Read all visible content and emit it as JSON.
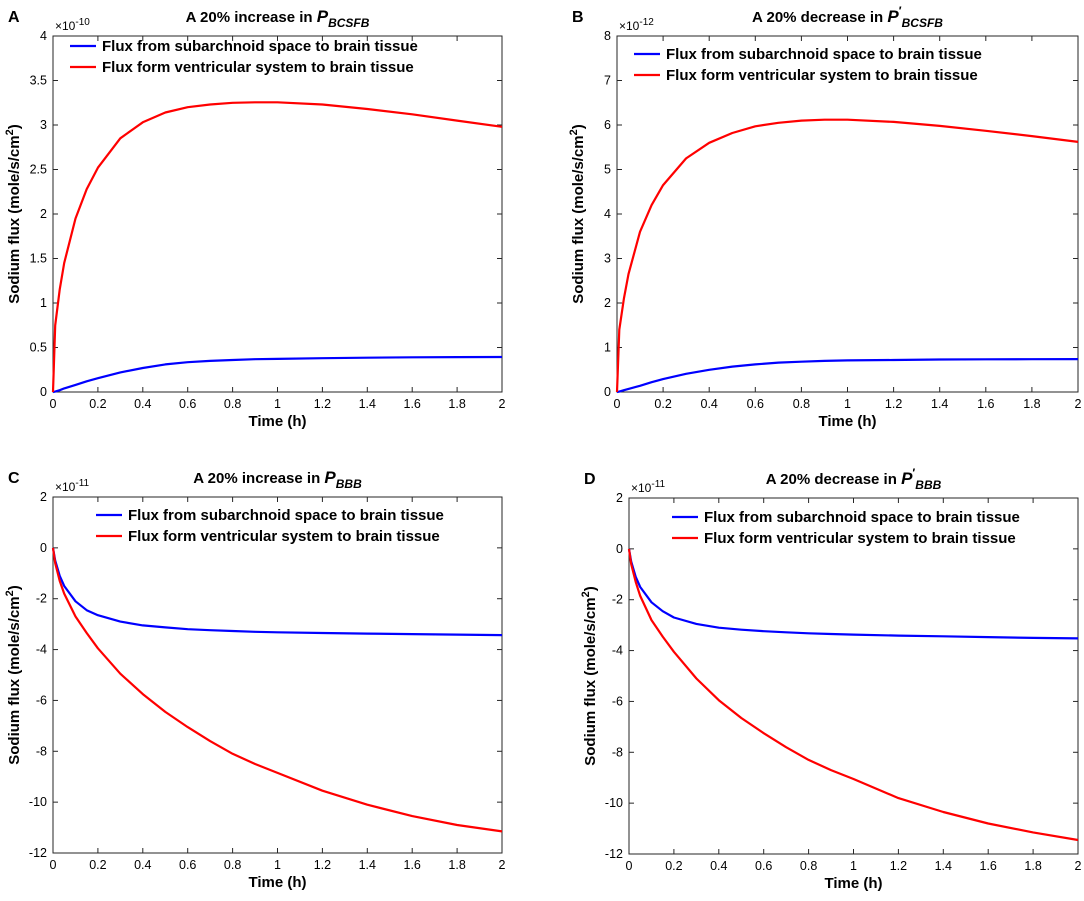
{
  "chart_data": [
    {
      "type": "line",
      "panel_label": "A",
      "title_prefix": "A 20% increase in ",
      "title_symbol": "P",
      "title_prime": "",
      "title_subscript": "BCSFB",
      "xlabel": "Time (h)",
      "ylabel_main": "Sodium flux (mole/s/cm",
      "ylabel_sup": "2",
      "ylabel_end": ")",
      "exponent_base": "×10",
      "exponent_power": "-10",
      "xlim": [
        0,
        2
      ],
      "ylim": [
        0,
        4
      ],
      "xticks": [
        0,
        0.2,
        0.4,
        0.6,
        0.8,
        1,
        1.2,
        1.4,
        1.6,
        1.8,
        2
      ],
      "xtick_labels": [
        "0",
        "0.2",
        "0.4",
        "0.6",
        "0.8",
        "1",
        "1.2",
        "1.4",
        "1.6",
        "1.8",
        "2"
      ],
      "yticks": [
        0,
        0.5,
        1,
        1.5,
        2,
        2.5,
        3,
        3.5,
        4
      ],
      "ytick_labels": [
        "0",
        "0.5",
        "1",
        "1.5",
        "2",
        "2.5",
        "3",
        "3.5",
        "4"
      ],
      "legend_position": "top-left",
      "x": [
        0,
        0.01,
        0.03,
        0.05,
        0.1,
        0.15,
        0.2,
        0.3,
        0.4,
        0.5,
        0.6,
        0.7,
        0.8,
        0.9,
        1.0,
        1.2,
        1.4,
        1.6,
        1.8,
        2.0
      ],
      "series": [
        {
          "name": "Flux from subarchnoid space to brain tissue",
          "color": "#0000ff",
          "values": [
            0,
            0.005,
            0.02,
            0.04,
            0.08,
            0.12,
            0.155,
            0.22,
            0.27,
            0.31,
            0.335,
            0.35,
            0.36,
            0.368,
            0.372,
            0.38,
            0.385,
            0.39,
            0.392,
            0.393
          ]
        },
        {
          "name": "Flux form ventricular system to brain tissue",
          "color": "#ff0000",
          "values": [
            0,
            0.75,
            1.15,
            1.45,
            1.95,
            2.28,
            2.52,
            2.85,
            3.03,
            3.14,
            3.2,
            3.23,
            3.25,
            3.255,
            3.255,
            3.23,
            3.18,
            3.12,
            3.05,
            2.98
          ]
        }
      ]
    },
    {
      "type": "line",
      "panel_label": "B",
      "title_prefix": "A 20% decrease in ",
      "title_symbol": "P",
      "title_prime": "′",
      "title_subscript": "BCSFB",
      "xlabel": "Time (h)",
      "ylabel_main": "Sodium flux (mole/s/cm",
      "ylabel_sup": "2",
      "ylabel_end": ")",
      "exponent_base": "×10",
      "exponent_power": "-12",
      "xlim": [
        0,
        2
      ],
      "ylim": [
        0,
        8
      ],
      "xticks": [
        0,
        0.2,
        0.4,
        0.6,
        0.8,
        1,
        1.2,
        1.4,
        1.6,
        1.8,
        2
      ],
      "xtick_labels": [
        "0",
        "0.2",
        "0.4",
        "0.6",
        "0.8",
        "1",
        "1.2",
        "1.4",
        "1.6",
        "1.8",
        "2"
      ],
      "yticks": [
        0,
        1,
        2,
        3,
        4,
        5,
        6,
        7,
        8
      ],
      "ytick_labels": [
        "0",
        "1",
        "2",
        "3",
        "4",
        "5",
        "6",
        "7",
        "8"
      ],
      "legend_position": "top-right",
      "x": [
        0,
        0.01,
        0.03,
        0.05,
        0.1,
        0.15,
        0.2,
        0.3,
        0.4,
        0.5,
        0.6,
        0.7,
        0.8,
        0.9,
        1.0,
        1.2,
        1.4,
        1.6,
        1.8,
        2.0
      ],
      "series": [
        {
          "name": "Flux from subarchnoid space to brain tissue",
          "color": "#0000ff",
          "values": [
            0,
            0.01,
            0.04,
            0.07,
            0.14,
            0.22,
            0.29,
            0.41,
            0.5,
            0.57,
            0.62,
            0.66,
            0.68,
            0.7,
            0.71,
            0.72,
            0.73,
            0.735,
            0.738,
            0.74
          ]
        },
        {
          "name": "Flux form ventricular system to brain tissue",
          "color": "#ff0000",
          "values": [
            0,
            1.4,
            2.1,
            2.65,
            3.6,
            4.2,
            4.65,
            5.25,
            5.6,
            5.82,
            5.97,
            6.05,
            6.1,
            6.12,
            6.12,
            6.07,
            5.98,
            5.87,
            5.75,
            5.62
          ]
        }
      ]
    },
    {
      "type": "line",
      "panel_label": "C",
      "title_prefix": "A 20% increase in ",
      "title_symbol": "P",
      "title_prime": "",
      "title_subscript": "BBB",
      "xlabel": "Time (h)",
      "ylabel_main": "Sodium flux (mole/s/cm",
      "ylabel_sup": "2",
      "ylabel_end": ")",
      "exponent_base": "×10",
      "exponent_power": "-11",
      "xlim": [
        0,
        2
      ],
      "ylim": [
        -12,
        2
      ],
      "xticks": [
        0,
        0.2,
        0.4,
        0.6,
        0.8,
        1,
        1.2,
        1.4,
        1.6,
        1.8,
        2
      ],
      "xtick_labels": [
        "0",
        "0.2",
        "0.4",
        "0.6",
        "0.8",
        "1",
        "1.2",
        "1.4",
        "1.6",
        "1.8",
        "2"
      ],
      "yticks": [
        -12,
        -10,
        -8,
        -6,
        -4,
        -2,
        0,
        2
      ],
      "ytick_labels": [
        "-12",
        "-10",
        "-8",
        "-6",
        "-4",
        "-2",
        "0",
        "2"
      ],
      "legend_position": "top-right",
      "x": [
        0,
        0.01,
        0.03,
        0.05,
        0.1,
        0.15,
        0.2,
        0.3,
        0.4,
        0.5,
        0.6,
        0.7,
        0.8,
        0.9,
        1.0,
        1.2,
        1.4,
        1.6,
        1.8,
        2.0
      ],
      "series": [
        {
          "name": "Flux from subarchnoid space to brain tissue",
          "color": "#0000ff",
          "values": [
            0,
            -0.5,
            -1.1,
            -1.5,
            -2.1,
            -2.45,
            -2.65,
            -2.9,
            -3.05,
            -3.13,
            -3.2,
            -3.24,
            -3.27,
            -3.3,
            -3.32,
            -3.35,
            -3.37,
            -3.39,
            -3.41,
            -3.43
          ]
        },
        {
          "name": "Flux form ventricular system to brain tissue",
          "color": "#ff0000",
          "values": [
            0,
            -0.6,
            -1.3,
            -1.8,
            -2.7,
            -3.35,
            -3.95,
            -4.95,
            -5.75,
            -6.45,
            -7.05,
            -7.6,
            -8.1,
            -8.5,
            -8.85,
            -9.55,
            -10.1,
            -10.55,
            -10.9,
            -11.15
          ]
        }
      ]
    },
    {
      "type": "line",
      "panel_label": "D",
      "title_prefix": "A 20% decrease in ",
      "title_symbol": "P",
      "title_prime": "′",
      "title_subscript": "BBB",
      "xlabel": "Time (h)",
      "ylabel_main": "Sodium flux (mole/s/cm",
      "ylabel_sup": "2",
      "ylabel_end": ")",
      "exponent_base": "×10",
      "exponent_power": "-11",
      "xlim": [
        0,
        2
      ],
      "ylim": [
        -12,
        2
      ],
      "xticks": [
        0,
        0.2,
        0.4,
        0.6,
        0.8,
        1,
        1.2,
        1.4,
        1.6,
        1.8,
        2
      ],
      "xtick_labels": [
        "0",
        "0.2",
        "0.4",
        "0.6",
        "0.8",
        "1",
        "1.2",
        "1.4",
        "1.6",
        "1.8",
        "2"
      ],
      "yticks": [
        -12,
        -10,
        -8,
        -6,
        -4,
        -2,
        0,
        2
      ],
      "ytick_labels": [
        "-12",
        "-10",
        "-8",
        "-6",
        "-4",
        "-2",
        "0",
        "2"
      ],
      "legend_position": "top-right",
      "x": [
        0,
        0.01,
        0.03,
        0.05,
        0.1,
        0.15,
        0.2,
        0.3,
        0.4,
        0.5,
        0.6,
        0.7,
        0.8,
        0.9,
        1.0,
        1.2,
        1.4,
        1.6,
        1.8,
        2.0
      ],
      "series": [
        {
          "name": "Flux from subarchnoid space to brain tissue",
          "color": "#0000ff",
          "values": [
            0,
            -0.5,
            -1.1,
            -1.5,
            -2.1,
            -2.45,
            -2.7,
            -2.95,
            -3.1,
            -3.18,
            -3.24,
            -3.28,
            -3.32,
            -3.35,
            -3.37,
            -3.41,
            -3.44,
            -3.47,
            -3.5,
            -3.52
          ]
        },
        {
          "name": "Flux form ventricular system to brain tissue",
          "color": "#ff0000",
          "values": [
            0,
            -0.6,
            -1.3,
            -1.85,
            -2.8,
            -3.45,
            -4.05,
            -5.1,
            -5.95,
            -6.65,
            -7.25,
            -7.8,
            -8.3,
            -8.7,
            -9.05,
            -9.8,
            -10.35,
            -10.8,
            -11.15,
            -11.45
          ]
        }
      ]
    }
  ]
}
